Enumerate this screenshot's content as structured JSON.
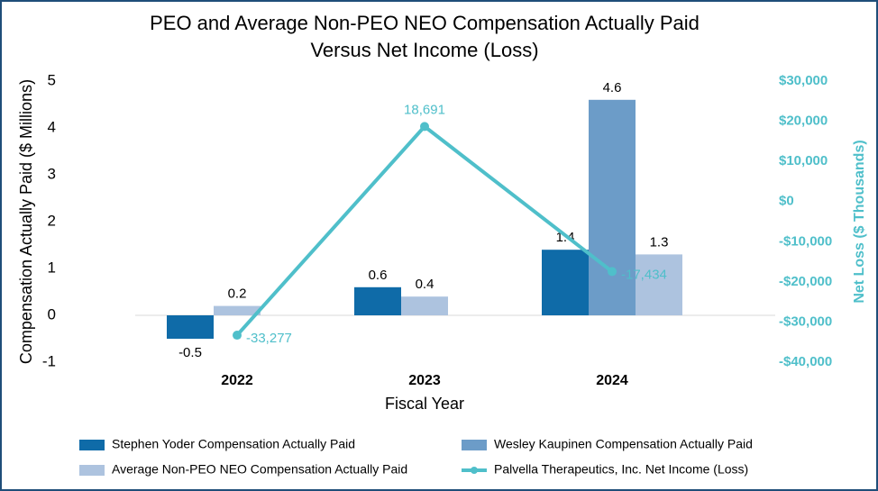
{
  "chart_data": {
    "type": "bar",
    "title": [
      "PEO and Average Non-PEO NEO Compensation Actually Paid",
      "Versus Net Income (Loss)"
    ],
    "x_label": "Fiscal Year",
    "y_label": "Compensation Actually Paid ($ Millions)",
    "y2_label": "Net Loss ($ Thousands)",
    "categories": [
      "2022",
      "2023",
      "2024"
    ],
    "ylim": [
      -1,
      5
    ],
    "yticks": [
      -1,
      0,
      1,
      2,
      3,
      4,
      5
    ],
    "y2lim": [
      -40000,
      30000
    ],
    "y2ticks": [
      {
        "value": -40000,
        "label": "-$40,000"
      },
      {
        "value": -30000,
        "label": "-$30,000"
      },
      {
        "value": -20000,
        "label": "-$20,000"
      },
      {
        "value": -10000,
        "label": "-$10,000"
      },
      {
        "value": 0,
        "label": "$0"
      },
      {
        "value": 10000,
        "label": "$10,000"
      },
      {
        "value": 20000,
        "label": "$20,000"
      },
      {
        "value": 30000,
        "label": "$30,000"
      }
    ],
    "series": [
      {
        "name": "Stephen Yoder Compensation Actually Paid",
        "type": "bar",
        "color": "#0f6ba8",
        "values": [
          -0.5,
          0.6,
          1.4
        ]
      },
      {
        "name": "Wesley Kaupinen Compensation Actually Paid",
        "type": "bar",
        "color": "#6c9cc8",
        "values": [
          null,
          null,
          4.6
        ]
      },
      {
        "name": "Average Non-PEO NEO Compensation Actually Paid",
        "type": "bar",
        "color": "#adc3df",
        "values": [
          0.2,
          0.4,
          1.3
        ]
      },
      {
        "name": "Palvella Therapeutics, Inc. Net Income (Loss)",
        "type": "line",
        "axis": "y2",
        "color": "#4fbfca",
        "values": [
          -33277,
          18691,
          -17434
        ],
        "value_labels": [
          "-33,277",
          "18,691",
          "-17,434"
        ]
      }
    ]
  }
}
